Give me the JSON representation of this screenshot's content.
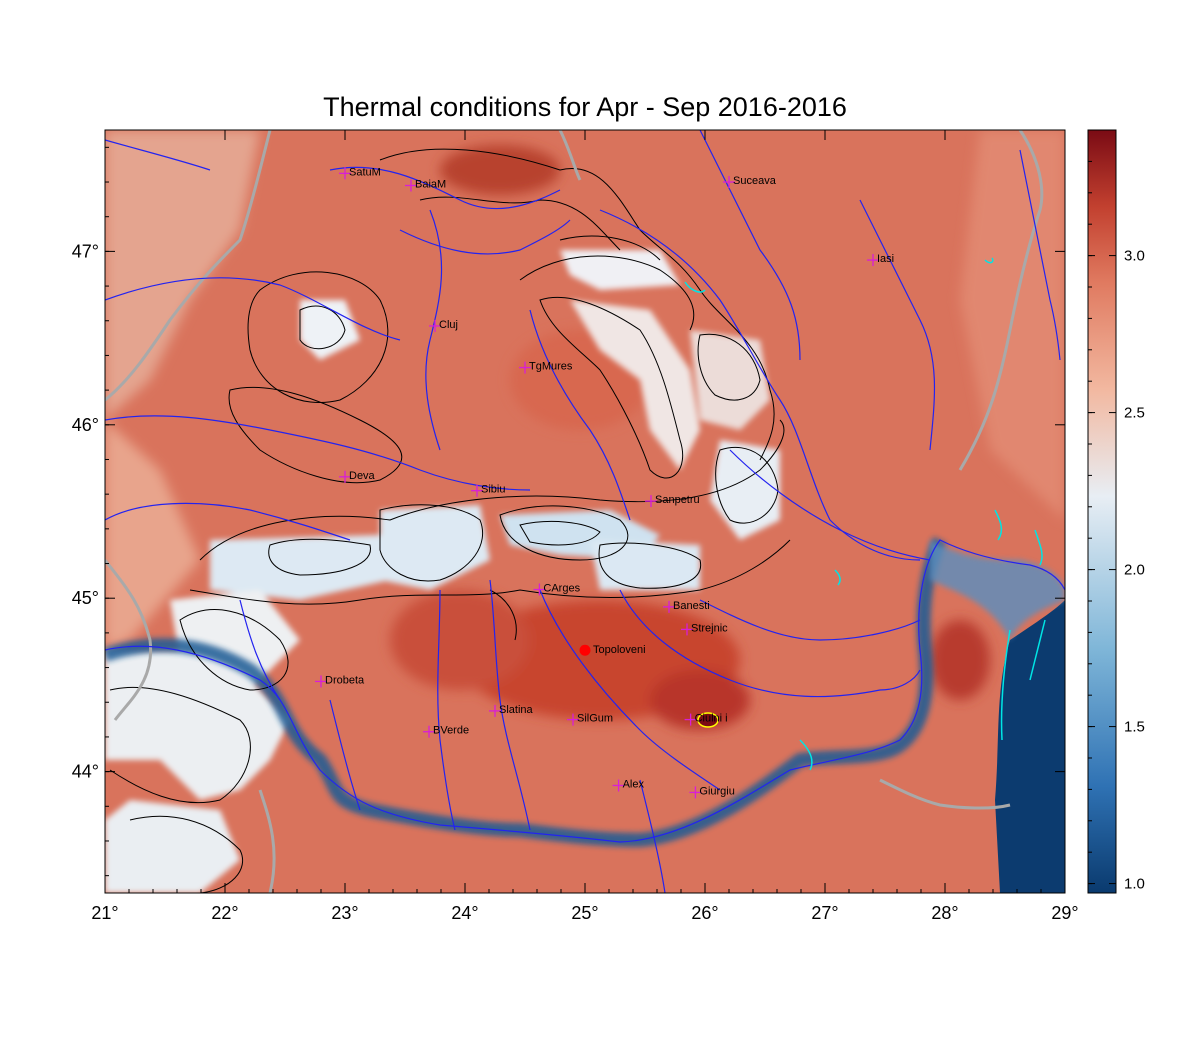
{
  "title": "Thermal conditions for Apr - Sep  2016-2016",
  "map": {
    "lon_range": [
      21,
      29
    ],
    "lat_range": [
      43.3,
      47.7
    ],
    "x_ticks": [
      "21°",
      "22°",
      "23°",
      "24°",
      "25°",
      "26°",
      "27°",
      "28°",
      "29°"
    ],
    "y_ticks": [
      "44°",
      "45°",
      "46°",
      "47°"
    ]
  },
  "colorbar": {
    "range": [
      0.97,
      3.4
    ],
    "labels": [
      "1.0",
      "1.5",
      "2.0",
      "2.5",
      "3.0"
    ],
    "colors": [
      "#0a3a6e",
      "#2f72b4",
      "#7fb6d8",
      "#e8eef4",
      "#f2b8a0",
      "#e07a60",
      "#c2402f",
      "#7a0b14"
    ]
  },
  "colors": {
    "land": "#d9735c",
    "mountain": "#e9eef3",
    "water": "#0c3b6f",
    "river": "#2323f0",
    "border": "#a9a9a9",
    "city_marker": "#d81ed8",
    "highlight_point": "#ff0000"
  },
  "cities": [
    {
      "name": "SatuM",
      "lon": 23.0,
      "lat": 47.45
    },
    {
      "name": "BaiaM",
      "lon": 23.55,
      "lat": 47.38
    },
    {
      "name": "Suceava",
      "lon": 26.2,
      "lat": 47.4
    },
    {
      "name": "Iasi",
      "lon": 27.4,
      "lat": 46.95
    },
    {
      "name": "Cluj",
      "lon": 23.75,
      "lat": 46.57
    },
    {
      "name": "TgMures",
      "lon": 24.5,
      "lat": 46.33
    },
    {
      "name": "Deva",
      "lon": 23.0,
      "lat": 45.7
    },
    {
      "name": "Sibiu",
      "lon": 24.1,
      "lat": 45.62
    },
    {
      "name": "Sanpetru",
      "lon": 25.55,
      "lat": 45.56
    },
    {
      "name": "CArges",
      "lon": 24.62,
      "lat": 45.05
    },
    {
      "name": "Banesti",
      "lon": 25.7,
      "lat": 44.95
    },
    {
      "name": "Strejnic",
      "lon": 25.85,
      "lat": 44.82
    },
    {
      "name": "Drobeta",
      "lon": 22.8,
      "lat": 44.52
    },
    {
      "name": "Slatina",
      "lon": 24.25,
      "lat": 44.35
    },
    {
      "name": "SilGum",
      "lon": 24.9,
      "lat": 44.3
    },
    {
      "name": "Ciulnita",
      "label": "Ciulni i",
      "lon": 25.88,
      "lat": 44.3
    },
    {
      "name": "BVerde",
      "lon": 23.7,
      "lat": 44.23
    },
    {
      "name": "Alex",
      "lon": 25.28,
      "lat": 43.92
    },
    {
      "name": "Giurgiu",
      "lon": 25.92,
      "lat": 43.88
    }
  ],
  "highlight": {
    "name": "Topoloveni",
    "lon": 25.0,
    "lat": 44.7
  }
}
